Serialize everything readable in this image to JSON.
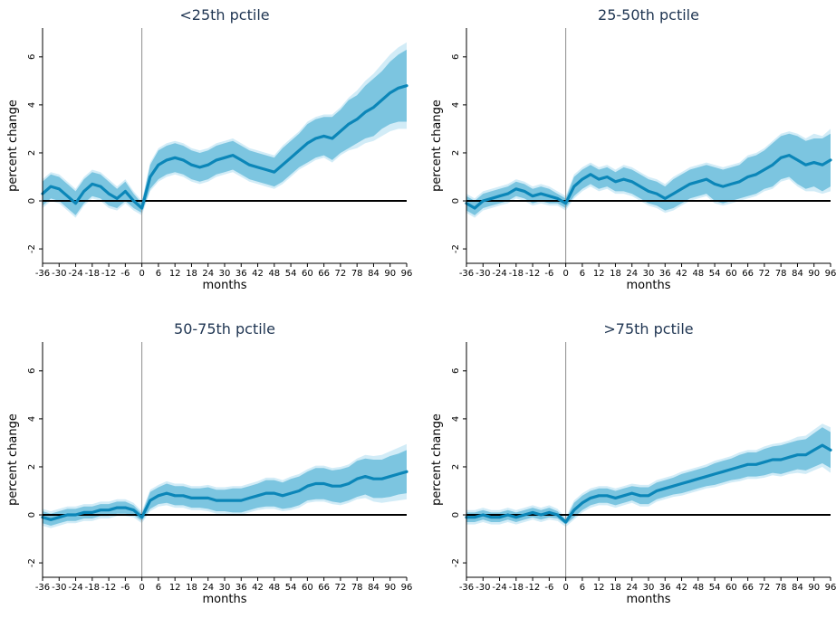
{
  "colors": {
    "line": "#0b86b8",
    "band_inner": "#7cc5e0",
    "band_outer": "#d2ecf7",
    "zero_line": "#000000",
    "event_line": "#8c8c8c",
    "title": "#1f3552"
  },
  "chart_data": [
    {
      "type": "line",
      "title": "<25th pctile",
      "xlabel": "months",
      "ylabel": "percent change",
      "xlim": [
        -36,
        96
      ],
      "ylim": [
        -2.6,
        7.2
      ],
      "x_ticks": [
        "-36",
        "-30",
        "-24",
        "-18",
        "-12",
        "-6",
        "0",
        "6",
        "12",
        "18",
        "24",
        "30",
        "36",
        "42",
        "48",
        "54",
        "60",
        "66",
        "72",
        "78",
        "84",
        "90",
        "96"
      ],
      "y_ticks": [
        "-2",
        "0",
        "2",
        "4",
        "6"
      ],
      "vline": 0,
      "hline": 0,
      "series": [
        {
          "x": [
            -36,
            -33,
            -30,
            -27,
            -24,
            -21,
            -18,
            -15,
            -12,
            -9,
            -6,
            -3,
            0,
            3,
            6,
            9,
            12,
            15,
            18,
            21,
            24,
            27,
            30,
            33,
            36,
            39,
            42,
            45,
            48,
            51,
            54,
            57,
            60,
            63,
            66,
            69,
            72,
            75,
            78,
            81,
            84,
            87,
            90,
            93,
            96
          ],
          "y": [
            0.3,
            0.6,
            0.5,
            0.2,
            -0.1,
            0.4,
            0.7,
            0.6,
            0.3,
            0.1,
            0.4,
            0.0,
            -0.3,
            1.0,
            1.5,
            1.7,
            1.8,
            1.7,
            1.5,
            1.4,
            1.5,
            1.7,
            1.8,
            1.9,
            1.7,
            1.5,
            1.4,
            1.3,
            1.2,
            1.5,
            1.8,
            2.1,
            2.4,
            2.6,
            2.7,
            2.6,
            2.9,
            3.2,
            3.4,
            3.7,
            3.9,
            4.2,
            4.5,
            4.7,
            4.8
          ],
          "inner": [
            0.5,
            0.5,
            0.5,
            0.5,
            0.5,
            0.5,
            0.5,
            0.5,
            0.5,
            0.4,
            0.4,
            0.3,
            0.2,
            0.5,
            0.6,
            0.6,
            0.6,
            0.6,
            0.6,
            0.6,
            0.6,
            0.6,
            0.6,
            0.6,
            0.6,
            0.6,
            0.6,
            0.6,
            0.6,
            0.7,
            0.7,
            0.7,
            0.8,
            0.8,
            0.8,
            0.9,
            0.9,
            1.0,
            1.0,
            1.1,
            1.2,
            1.2,
            1.3,
            1.4,
            1.5
          ],
          "outer": [
            0.6,
            0.6,
            0.6,
            0.6,
            0.6,
            0.6,
            0.6,
            0.6,
            0.6,
            0.5,
            0.5,
            0.4,
            0.3,
            0.6,
            0.7,
            0.7,
            0.7,
            0.7,
            0.7,
            0.7,
            0.7,
            0.7,
            0.7,
            0.7,
            0.7,
            0.7,
            0.7,
            0.7,
            0.7,
            0.8,
            0.8,
            0.8,
            0.9,
            0.9,
            0.9,
            1.0,
            1.0,
            1.1,
            1.2,
            1.3,
            1.4,
            1.5,
            1.6,
            1.7,
            1.8
          ]
        }
      ]
    },
    {
      "type": "line",
      "title": "25-50th pctile",
      "xlabel": "months",
      "ylabel": "percent change",
      "xlim": [
        -36,
        96
      ],
      "ylim": [
        -2.6,
        7.2
      ],
      "x_ticks": [
        "-36",
        "-30",
        "-24",
        "-18",
        "-12",
        "-6",
        "0",
        "6",
        "12",
        "18",
        "24",
        "30",
        "36",
        "42",
        "48",
        "54",
        "60",
        "66",
        "72",
        "78",
        "84",
        "90",
        "96"
      ],
      "y_ticks": [
        "-2",
        "0",
        "2",
        "4",
        "6"
      ],
      "vline": 0,
      "hline": 0,
      "series": [
        {
          "x": [
            -36,
            -33,
            -30,
            -27,
            -24,
            -21,
            -18,
            -15,
            -12,
            -9,
            -6,
            -3,
            0,
            3,
            6,
            9,
            12,
            15,
            18,
            21,
            24,
            27,
            30,
            33,
            36,
            39,
            42,
            45,
            48,
            51,
            54,
            57,
            60,
            63,
            66,
            69,
            72,
            75,
            78,
            81,
            84,
            87,
            90,
            93,
            96
          ],
          "y": [
            -0.1,
            -0.3,
            0.0,
            0.1,
            0.2,
            0.3,
            0.5,
            0.4,
            0.2,
            0.3,
            0.2,
            0.1,
            -0.1,
            0.6,
            0.9,
            1.1,
            0.9,
            1.0,
            0.8,
            0.9,
            0.8,
            0.6,
            0.4,
            0.3,
            0.1,
            0.3,
            0.5,
            0.7,
            0.8,
            0.9,
            0.7,
            0.6,
            0.7,
            0.8,
            1.0,
            1.1,
            1.3,
            1.5,
            1.8,
            1.9,
            1.7,
            1.5,
            1.6,
            1.5,
            1.7
          ],
          "inner": [
            0.3,
            0.3,
            0.3,
            0.3,
            0.3,
            0.3,
            0.3,
            0.3,
            0.3,
            0.3,
            0.3,
            0.2,
            0.2,
            0.4,
            0.4,
            0.4,
            0.4,
            0.4,
            0.4,
            0.5,
            0.5,
            0.5,
            0.5,
            0.5,
            0.5,
            0.6,
            0.6,
            0.6,
            0.6,
            0.6,
            0.7,
            0.7,
            0.7,
            0.7,
            0.8,
            0.8,
            0.8,
            0.9,
            0.9,
            0.9,
            1.0,
            1.0,
            1.0,
            1.1,
            1.1
          ],
          "outer": [
            0.4,
            0.4,
            0.4,
            0.4,
            0.4,
            0.4,
            0.4,
            0.4,
            0.4,
            0.4,
            0.4,
            0.3,
            0.3,
            0.5,
            0.5,
            0.5,
            0.5,
            0.5,
            0.5,
            0.6,
            0.6,
            0.6,
            0.6,
            0.6,
            0.6,
            0.7,
            0.7,
            0.7,
            0.7,
            0.7,
            0.8,
            0.8,
            0.8,
            0.8,
            0.9,
            0.9,
            0.9,
            1.0,
            1.0,
            1.0,
            1.1,
            1.1,
            1.2,
            1.2,
            1.3
          ]
        }
      ]
    },
    {
      "type": "line",
      "title": "50-75th pctile",
      "xlabel": "months",
      "ylabel": "percent change",
      "xlim": [
        -36,
        96
      ],
      "ylim": [
        -2.6,
        7.2
      ],
      "x_ticks": [
        "-36",
        "-30",
        "-24",
        "-18",
        "-12",
        "-6",
        "0",
        "6",
        "12",
        "18",
        "24",
        "30",
        "36",
        "42",
        "48",
        "54",
        "60",
        "66",
        "72",
        "78",
        "84",
        "90",
        "96"
      ],
      "y_ticks": [
        "-2",
        "0",
        "2",
        "4",
        "6"
      ],
      "vline": 0,
      "hline": 0,
      "series": [
        {
          "x": [
            -36,
            -33,
            -30,
            -27,
            -24,
            -21,
            -18,
            -15,
            -12,
            -9,
            -6,
            -3,
            0,
            3,
            6,
            9,
            12,
            15,
            18,
            21,
            24,
            27,
            30,
            33,
            36,
            39,
            42,
            45,
            48,
            51,
            54,
            57,
            60,
            63,
            66,
            69,
            72,
            75,
            78,
            81,
            84,
            87,
            90,
            93,
            96
          ],
          "y": [
            -0.1,
            -0.2,
            -0.1,
            0.0,
            0.0,
            0.1,
            0.1,
            0.2,
            0.2,
            0.3,
            0.3,
            0.2,
            -0.1,
            0.6,
            0.8,
            0.9,
            0.8,
            0.8,
            0.7,
            0.7,
            0.7,
            0.6,
            0.6,
            0.6,
            0.6,
            0.7,
            0.8,
            0.9,
            0.9,
            0.8,
            0.9,
            1.0,
            1.2,
            1.3,
            1.3,
            1.2,
            1.2,
            1.3,
            1.5,
            1.6,
            1.5,
            1.5,
            1.6,
            1.7,
            1.8
          ],
          "inner": [
            0.25,
            0.25,
            0.25,
            0.25,
            0.25,
            0.25,
            0.25,
            0.25,
            0.25,
            0.25,
            0.25,
            0.2,
            0.15,
            0.35,
            0.35,
            0.4,
            0.4,
            0.4,
            0.4,
            0.4,
            0.45,
            0.45,
            0.45,
            0.5,
            0.5,
            0.5,
            0.5,
            0.55,
            0.55,
            0.55,
            0.6,
            0.6,
            0.6,
            0.65,
            0.65,
            0.65,
            0.7,
            0.7,
            0.75,
            0.75,
            0.8,
            0.8,
            0.85,
            0.85,
            0.9
          ],
          "outer": [
            0.35,
            0.35,
            0.35,
            0.35,
            0.35,
            0.35,
            0.35,
            0.35,
            0.35,
            0.35,
            0.35,
            0.3,
            0.25,
            0.45,
            0.45,
            0.5,
            0.5,
            0.5,
            0.5,
            0.5,
            0.55,
            0.55,
            0.55,
            0.6,
            0.6,
            0.6,
            0.6,
            0.65,
            0.65,
            0.65,
            0.7,
            0.7,
            0.7,
            0.75,
            0.75,
            0.75,
            0.8,
            0.8,
            0.85,
            0.9,
            0.95,
            1.0,
            1.05,
            1.1,
            1.15
          ]
        }
      ]
    },
    {
      "type": "line",
      "title": ">75th pctile",
      "xlabel": "months",
      "ylabel": "percent change",
      "xlim": [
        -36,
        96
      ],
      "ylim": [
        -2.6,
        7.2
      ],
      "x_ticks": [
        "-36",
        "-30",
        "-24",
        "-18",
        "-12",
        "-6",
        "0",
        "6",
        "12",
        "18",
        "24",
        "30",
        "36",
        "42",
        "48",
        "54",
        "60",
        "66",
        "72",
        "78",
        "84",
        "90",
        "96"
      ],
      "y_ticks": [
        "-2",
        "0",
        "2",
        "4",
        "6"
      ],
      "vline": 0,
      "hline": 0,
      "series": [
        {
          "x": [
            -36,
            -33,
            -30,
            -27,
            -24,
            -21,
            -18,
            -15,
            -12,
            -9,
            -6,
            -3,
            0,
            3,
            6,
            9,
            12,
            15,
            18,
            21,
            24,
            27,
            30,
            33,
            36,
            39,
            42,
            45,
            48,
            51,
            54,
            57,
            60,
            63,
            66,
            69,
            72,
            75,
            78,
            81,
            84,
            87,
            90,
            93,
            96
          ],
          "y": [
            -0.1,
            -0.1,
            0.0,
            -0.1,
            -0.1,
            0.0,
            -0.1,
            0.0,
            0.1,
            0.0,
            0.1,
            0.0,
            -0.3,
            0.2,
            0.5,
            0.7,
            0.8,
            0.8,
            0.7,
            0.8,
            0.9,
            0.8,
            0.8,
            1.0,
            1.1,
            1.2,
            1.3,
            1.4,
            1.5,
            1.6,
            1.7,
            1.8,
            1.9,
            2.0,
            2.1,
            2.1,
            2.2,
            2.3,
            2.3,
            2.4,
            2.5,
            2.5,
            2.7,
            2.9,
            2.7
          ],
          "inner": [
            0.2,
            0.2,
            0.2,
            0.2,
            0.2,
            0.2,
            0.2,
            0.2,
            0.2,
            0.2,
            0.2,
            0.15,
            0.1,
            0.3,
            0.3,
            0.3,
            0.3,
            0.3,
            0.3,
            0.3,
            0.3,
            0.35,
            0.35,
            0.35,
            0.35,
            0.35,
            0.4,
            0.4,
            0.4,
            0.4,
            0.45,
            0.45,
            0.45,
            0.5,
            0.5,
            0.5,
            0.55,
            0.55,
            0.6,
            0.6,
            0.6,
            0.65,
            0.7,
            0.75,
            0.75
          ],
          "outer": [
            0.3,
            0.3,
            0.3,
            0.3,
            0.3,
            0.3,
            0.3,
            0.3,
            0.3,
            0.3,
            0.3,
            0.25,
            0.2,
            0.4,
            0.4,
            0.4,
            0.4,
            0.4,
            0.4,
            0.4,
            0.4,
            0.45,
            0.45,
            0.45,
            0.45,
            0.45,
            0.5,
            0.5,
            0.5,
            0.5,
            0.55,
            0.55,
            0.55,
            0.6,
            0.6,
            0.6,
            0.65,
            0.65,
            0.7,
            0.7,
            0.75,
            0.8,
            0.85,
            0.9,
            0.95
          ]
        }
      ]
    }
  ]
}
